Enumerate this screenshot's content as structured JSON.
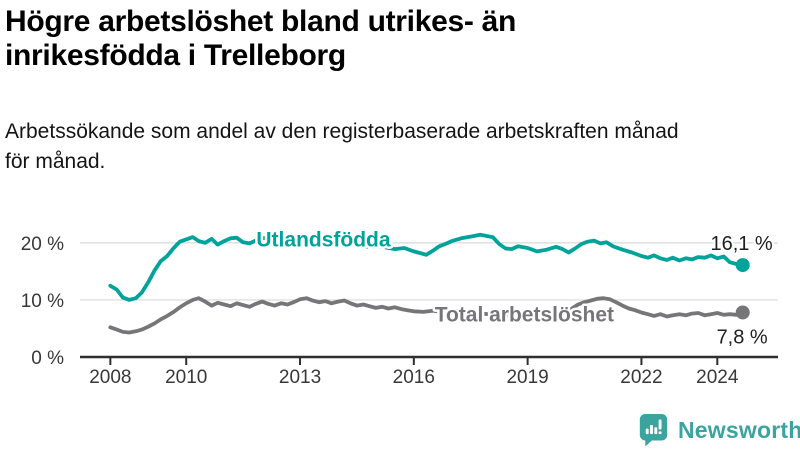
{
  "header": {
    "title_lines": [
      "Högre arbetslöshet bland utrikes- än",
      "inrikesfödda i Trelleborg"
    ],
    "subtitle_lines": [
      "Arbetssökande som andel av den registerbaserade arbetskraften månad",
      "för månad."
    ]
  },
  "footer": {
    "brand": "Newsworthy",
    "brand_color": "#3ba49e",
    "logo_icon": "bar-chart-speech-bubble-icon"
  },
  "chart_data": {
    "type": "line",
    "unit": "%",
    "grid": "horizontal",
    "legend_position": "inline-labels",
    "xlim": [
      2007.2,
      2025.6
    ],
    "ylim": [
      0,
      22.6
    ],
    "y_ticks": [
      {
        "value": 0,
        "label": "0 %"
      },
      {
        "value": 10,
        "label": "10 %"
      },
      {
        "value": 20,
        "label": "20 %"
      }
    ],
    "x_ticks": [
      {
        "year": 2008,
        "label": "2008"
      },
      {
        "year": 2010,
        "label": "2010"
      },
      {
        "year": 2013,
        "label": "2013"
      },
      {
        "year": 2016,
        "label": "2016"
      },
      {
        "year": 2019,
        "label": "2019"
      },
      {
        "year": 2022,
        "label": "2022"
      },
      {
        "year": 2024,
        "label": "2024"
      }
    ],
    "series": [
      {
        "name": "Utlandsfödda",
        "color": "#00a39a",
        "end_label": "16,1 %",
        "end_value": 16.1,
        "label_anchor": {
          "x": 2011.85,
          "y": 19.4
        },
        "end_label_offset": [
          30,
          -15
        ],
        "points": [
          [
            2008.0,
            12.5
          ],
          [
            2008.17,
            11.8
          ],
          [
            2008.33,
            10.4
          ],
          [
            2008.5,
            10.0
          ],
          [
            2008.67,
            10.3
          ],
          [
            2008.83,
            11.3
          ],
          [
            2009.0,
            13.1
          ],
          [
            2009.17,
            15.2
          ],
          [
            2009.33,
            16.8
          ],
          [
            2009.5,
            17.7
          ],
          [
            2009.67,
            19.1
          ],
          [
            2009.83,
            20.2
          ],
          [
            2010.0,
            20.6
          ],
          [
            2010.17,
            21.0
          ],
          [
            2010.33,
            20.3
          ],
          [
            2010.5,
            20.0
          ],
          [
            2010.67,
            20.7
          ],
          [
            2010.83,
            19.7
          ],
          [
            2011.0,
            20.3
          ],
          [
            2011.17,
            20.8
          ],
          [
            2011.33,
            20.9
          ],
          [
            2011.5,
            20.1
          ],
          [
            2011.67,
            19.9
          ],
          [
            2011.83,
            20.4
          ],
          [
            2012.0,
            20.8
          ],
          [
            2012.17,
            20.9
          ],
          [
            2012.33,
            20.4
          ],
          [
            2012.5,
            20.1
          ],
          [
            2012.67,
            20.6
          ],
          [
            2012.83,
            20.3
          ],
          [
            2013.0,
            19.8
          ],
          [
            2013.25,
            20.1
          ],
          [
            2013.5,
            20.3
          ],
          [
            2013.75,
            19.9
          ],
          [
            2014.0,
            19.6
          ],
          [
            2014.25,
            19.9
          ],
          [
            2014.5,
            19.5
          ],
          [
            2014.75,
            19.3
          ],
          [
            2015.0,
            19.5
          ],
          [
            2015.25,
            19.2
          ],
          [
            2015.5,
            18.9
          ],
          [
            2015.75,
            19.1
          ],
          [
            2016.0,
            18.5
          ],
          [
            2016.17,
            18.2
          ],
          [
            2016.33,
            17.9
          ],
          [
            2016.5,
            18.6
          ],
          [
            2016.67,
            19.4
          ],
          [
            2016.83,
            19.8
          ],
          [
            2017.0,
            20.3
          ],
          [
            2017.25,
            20.8
          ],
          [
            2017.5,
            21.1
          ],
          [
            2017.75,
            21.4
          ],
          [
            2017.92,
            21.2
          ],
          [
            2018.08,
            21.0
          ],
          [
            2018.25,
            19.8
          ],
          [
            2018.42,
            19.0
          ],
          [
            2018.58,
            18.9
          ],
          [
            2018.75,
            19.4
          ],
          [
            2019.0,
            19.1
          ],
          [
            2019.25,
            18.5
          ],
          [
            2019.5,
            18.8
          ],
          [
            2019.75,
            19.3
          ],
          [
            2019.92,
            18.9
          ],
          [
            2020.08,
            18.3
          ],
          [
            2020.25,
            19.0
          ],
          [
            2020.42,
            19.8
          ],
          [
            2020.58,
            20.2
          ],
          [
            2020.75,
            20.4
          ],
          [
            2020.92,
            19.9
          ],
          [
            2021.08,
            20.1
          ],
          [
            2021.25,
            19.4
          ],
          [
            2021.5,
            18.8
          ],
          [
            2021.75,
            18.3
          ],
          [
            2022.0,
            17.7
          ],
          [
            2022.17,
            17.4
          ],
          [
            2022.33,
            17.8
          ],
          [
            2022.5,
            17.3
          ],
          [
            2022.67,
            17.0
          ],
          [
            2022.83,
            17.4
          ],
          [
            2023.0,
            16.9
          ],
          [
            2023.17,
            17.3
          ],
          [
            2023.33,
            17.1
          ],
          [
            2023.5,
            17.5
          ],
          [
            2023.67,
            17.4
          ],
          [
            2023.83,
            17.8
          ],
          [
            2024.0,
            17.3
          ],
          [
            2024.17,
            17.6
          ],
          [
            2024.33,
            16.6
          ],
          [
            2024.5,
            16.3
          ],
          [
            2024.67,
            16.1
          ]
        ]
      },
      {
        "name": "Total arbetslöshet",
        "color": "#76767a",
        "end_label": "7,8 %",
        "end_value": 7.8,
        "label_anchor": {
          "x": 2016.55,
          "y": 6.2
        },
        "end_label_offset": [
          25,
          31
        ],
        "points": [
          [
            2008.0,
            5.2
          ],
          [
            2008.17,
            4.8
          ],
          [
            2008.33,
            4.4
          ],
          [
            2008.5,
            4.3
          ],
          [
            2008.67,
            4.5
          ],
          [
            2008.83,
            4.8
          ],
          [
            2009.0,
            5.3
          ],
          [
            2009.17,
            5.9
          ],
          [
            2009.33,
            6.6
          ],
          [
            2009.5,
            7.2
          ],
          [
            2009.67,
            7.9
          ],
          [
            2009.83,
            8.7
          ],
          [
            2010.0,
            9.4
          ],
          [
            2010.17,
            10.0
          ],
          [
            2010.33,
            10.3
          ],
          [
            2010.5,
            9.7
          ],
          [
            2010.67,
            9.0
          ],
          [
            2010.83,
            9.5
          ],
          [
            2011.0,
            9.2
          ],
          [
            2011.17,
            8.9
          ],
          [
            2011.33,
            9.4
          ],
          [
            2011.5,
            9.1
          ],
          [
            2011.67,
            8.8
          ],
          [
            2011.83,
            9.3
          ],
          [
            2012.0,
            9.7
          ],
          [
            2012.17,
            9.3
          ],
          [
            2012.33,
            9.0
          ],
          [
            2012.5,
            9.4
          ],
          [
            2012.67,
            9.2
          ],
          [
            2012.83,
            9.6
          ],
          [
            2013.0,
            10.1
          ],
          [
            2013.17,
            10.3
          ],
          [
            2013.33,
            9.9
          ],
          [
            2013.5,
            9.6
          ],
          [
            2013.67,
            9.8
          ],
          [
            2013.83,
            9.4
          ],
          [
            2014.0,
            9.7
          ],
          [
            2014.17,
            9.9
          ],
          [
            2014.33,
            9.4
          ],
          [
            2014.5,
            9.0
          ],
          [
            2014.67,
            9.2
          ],
          [
            2014.83,
            8.9
          ],
          [
            2015.0,
            8.6
          ],
          [
            2015.17,
            8.8
          ],
          [
            2015.33,
            8.5
          ],
          [
            2015.5,
            8.7
          ],
          [
            2015.67,
            8.4
          ],
          [
            2015.83,
            8.2
          ],
          [
            2016.0,
            8.0
          ],
          [
            2016.25,
            7.9
          ],
          [
            2016.5,
            8.1
          ],
          [
            2016.75,
            7.9
          ],
          [
            2017.0,
            7.8
          ],
          [
            2017.25,
            7.9
          ],
          [
            2017.5,
            7.7
          ],
          [
            2017.75,
            7.6
          ],
          [
            2018.0,
            7.5
          ],
          [
            2018.25,
            7.4
          ],
          [
            2018.5,
            7.3
          ],
          [
            2018.75,
            7.4
          ],
          [
            2019.0,
            7.5
          ],
          [
            2019.25,
            7.4
          ],
          [
            2019.5,
            7.6
          ],
          [
            2019.75,
            7.8
          ],
          [
            2020.0,
            8.0
          ],
          [
            2020.17,
            8.5
          ],
          [
            2020.33,
            9.2
          ],
          [
            2020.5,
            9.6
          ],
          [
            2020.67,
            9.9
          ],
          [
            2020.83,
            10.2
          ],
          [
            2021.0,
            10.3
          ],
          [
            2021.17,
            10.1
          ],
          [
            2021.33,
            9.6
          ],
          [
            2021.5,
            9.0
          ],
          [
            2021.67,
            8.5
          ],
          [
            2021.83,
            8.2
          ],
          [
            2022.0,
            7.8
          ],
          [
            2022.17,
            7.5
          ],
          [
            2022.33,
            7.2
          ],
          [
            2022.5,
            7.5
          ],
          [
            2022.67,
            7.1
          ],
          [
            2022.83,
            7.3
          ],
          [
            2023.0,
            7.5
          ],
          [
            2023.17,
            7.3
          ],
          [
            2023.33,
            7.6
          ],
          [
            2023.5,
            7.7
          ],
          [
            2023.67,
            7.3
          ],
          [
            2023.83,
            7.5
          ],
          [
            2024.0,
            7.7
          ],
          [
            2024.17,
            7.4
          ],
          [
            2024.33,
            7.5
          ],
          [
            2024.5,
            7.4
          ],
          [
            2024.67,
            7.8
          ]
        ]
      }
    ]
  }
}
